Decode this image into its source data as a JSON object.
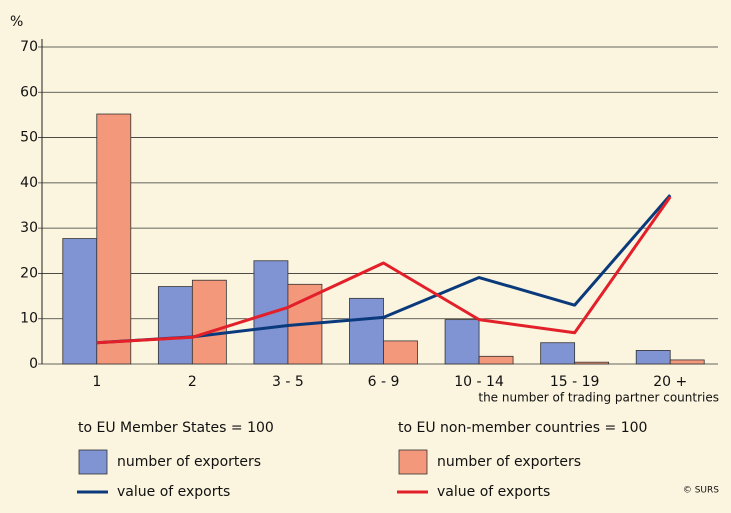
{
  "chart_data": {
    "type": "bar",
    "y_unit": "%",
    "x_label": "the number of trading partner countries",
    "categories": [
      "1",
      "2",
      "3 - 5",
      "6 - 9",
      "10 - 14",
      "15 - 19",
      "20 +"
    ],
    "legend_titles": [
      "to EU Member States = 100",
      "to EU non-member countries = 100"
    ],
    "legend_title_colors": [
      "#1b3f8f",
      "#e3202a"
    ],
    "series": [
      {
        "name": "number of exporters",
        "type": "bar",
        "color": "#8093d2",
        "values": [
          27.7,
          17.1,
          22.8,
          14.5,
          9.8,
          4.7,
          3.0
        ]
      },
      {
        "name": "value of exports",
        "type": "line",
        "color": "#0b3a7c",
        "values": [
          4.7,
          6.0,
          8.5,
          10.3,
          19.1,
          13.0,
          37.3
        ]
      },
      {
        "name": "number of exporters",
        "type": "bar",
        "color": "#f4987b",
        "values": [
          55.2,
          18.5,
          17.6,
          5.1,
          1.7,
          0.4,
          0.9
        ]
      },
      {
        "name": "value of exports",
        "type": "line",
        "color": "#e3202a",
        "values": [
          4.7,
          5.9,
          12.5,
          22.3,
          9.8,
          6.9,
          36.9
        ]
      }
    ],
    "ylim": [
      0,
      70
    ],
    "yticks": [
      0,
      10,
      20,
      30,
      40,
      50,
      60,
      70
    ],
    "grid": true,
    "source": "© SURS"
  }
}
